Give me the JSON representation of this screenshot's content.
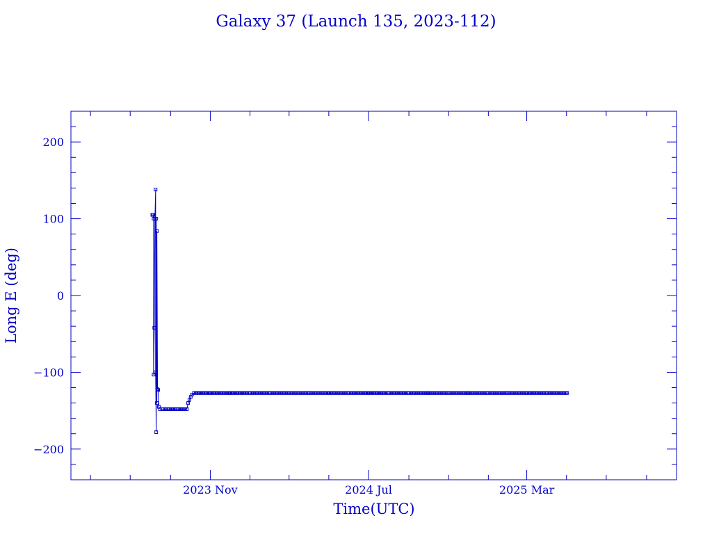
{
  "chart_data": {
    "type": "line",
    "title": "Galaxy 37 (Launch 135, 2023-112)",
    "xlabel": "Time(UTC)",
    "ylabel": "Long E (deg)",
    "x_range": [
      "2023-04-01",
      "2025-10-17"
    ],
    "ylim": [
      -240,
      240
    ],
    "y_ticks": [
      -200,
      -100,
      0,
      100,
      200
    ],
    "x_ticks": [
      {
        "label": "2023 Nov",
        "date": "2023-11-01"
      },
      {
        "label": "2024 Jul",
        "date": "2024-07-01"
      },
      {
        "label": "2025 Mar",
        "date": "2025-03-01"
      }
    ],
    "grid": false,
    "color": "#0000c8",
    "series": [
      {
        "points": [
          [
            "2023-08-04",
            105
          ],
          [
            "2023-08-05",
            105
          ],
          [
            "2023-08-06",
            100
          ],
          [
            "2023-08-06",
            -103
          ],
          [
            "2023-08-07",
            -42
          ],
          [
            "2023-08-08",
            100
          ],
          [
            "2023-08-09",
            138
          ],
          [
            "2023-08-09",
            -100
          ],
          [
            "2023-08-10",
            -178
          ],
          [
            "2023-08-10",
            100
          ],
          [
            "2023-08-11",
            -140
          ],
          [
            "2023-08-11",
            84
          ],
          [
            "2023-08-12",
            -122
          ],
          [
            "2023-08-13",
            -123
          ],
          [
            "2023-08-14",
            -145
          ],
          [
            "2023-08-16",
            -148
          ],
          [
            "2023-08-20",
            -148
          ],
          [
            "2023-08-25",
            -148
          ],
          [
            "2023-08-30",
            -148
          ],
          [
            "2023-09-05",
            -148
          ],
          [
            "2023-09-12",
            -148
          ],
          [
            "2023-09-18",
            -148
          ],
          [
            "2023-09-23",
            -148
          ],
          [
            "2023-09-26",
            -148
          ],
          [
            "2023-09-28",
            -140
          ],
          [
            "2023-09-30",
            -136
          ],
          [
            "2023-10-02",
            -132
          ],
          [
            "2023-10-04",
            -129
          ],
          [
            "2023-10-07",
            -127
          ],
          [
            "2023-10-15",
            -127
          ],
          [
            "2023-11-01",
            -127
          ],
          [
            "2023-12-01",
            -127
          ],
          [
            "2024-01-01",
            -127
          ],
          [
            "2024-02-01",
            -127
          ],
          [
            "2024-03-01",
            -127
          ],
          [
            "2024-04-01",
            -127
          ],
          [
            "2024-05-01",
            -127
          ],
          [
            "2024-06-01",
            -127
          ],
          [
            "2024-07-01",
            -127
          ],
          [
            "2024-08-01",
            -127
          ],
          [
            "2024-09-01",
            -127
          ],
          [
            "2024-10-01",
            -127
          ],
          [
            "2024-11-01",
            -127
          ],
          [
            "2024-12-01",
            -127
          ],
          [
            "2025-01-01",
            -127
          ],
          [
            "2025-02-01",
            -127
          ],
          [
            "2025-03-01",
            -127
          ],
          [
            "2025-04-01",
            -127
          ],
          [
            "2025-05-02",
            -127
          ]
        ]
      }
    ]
  }
}
